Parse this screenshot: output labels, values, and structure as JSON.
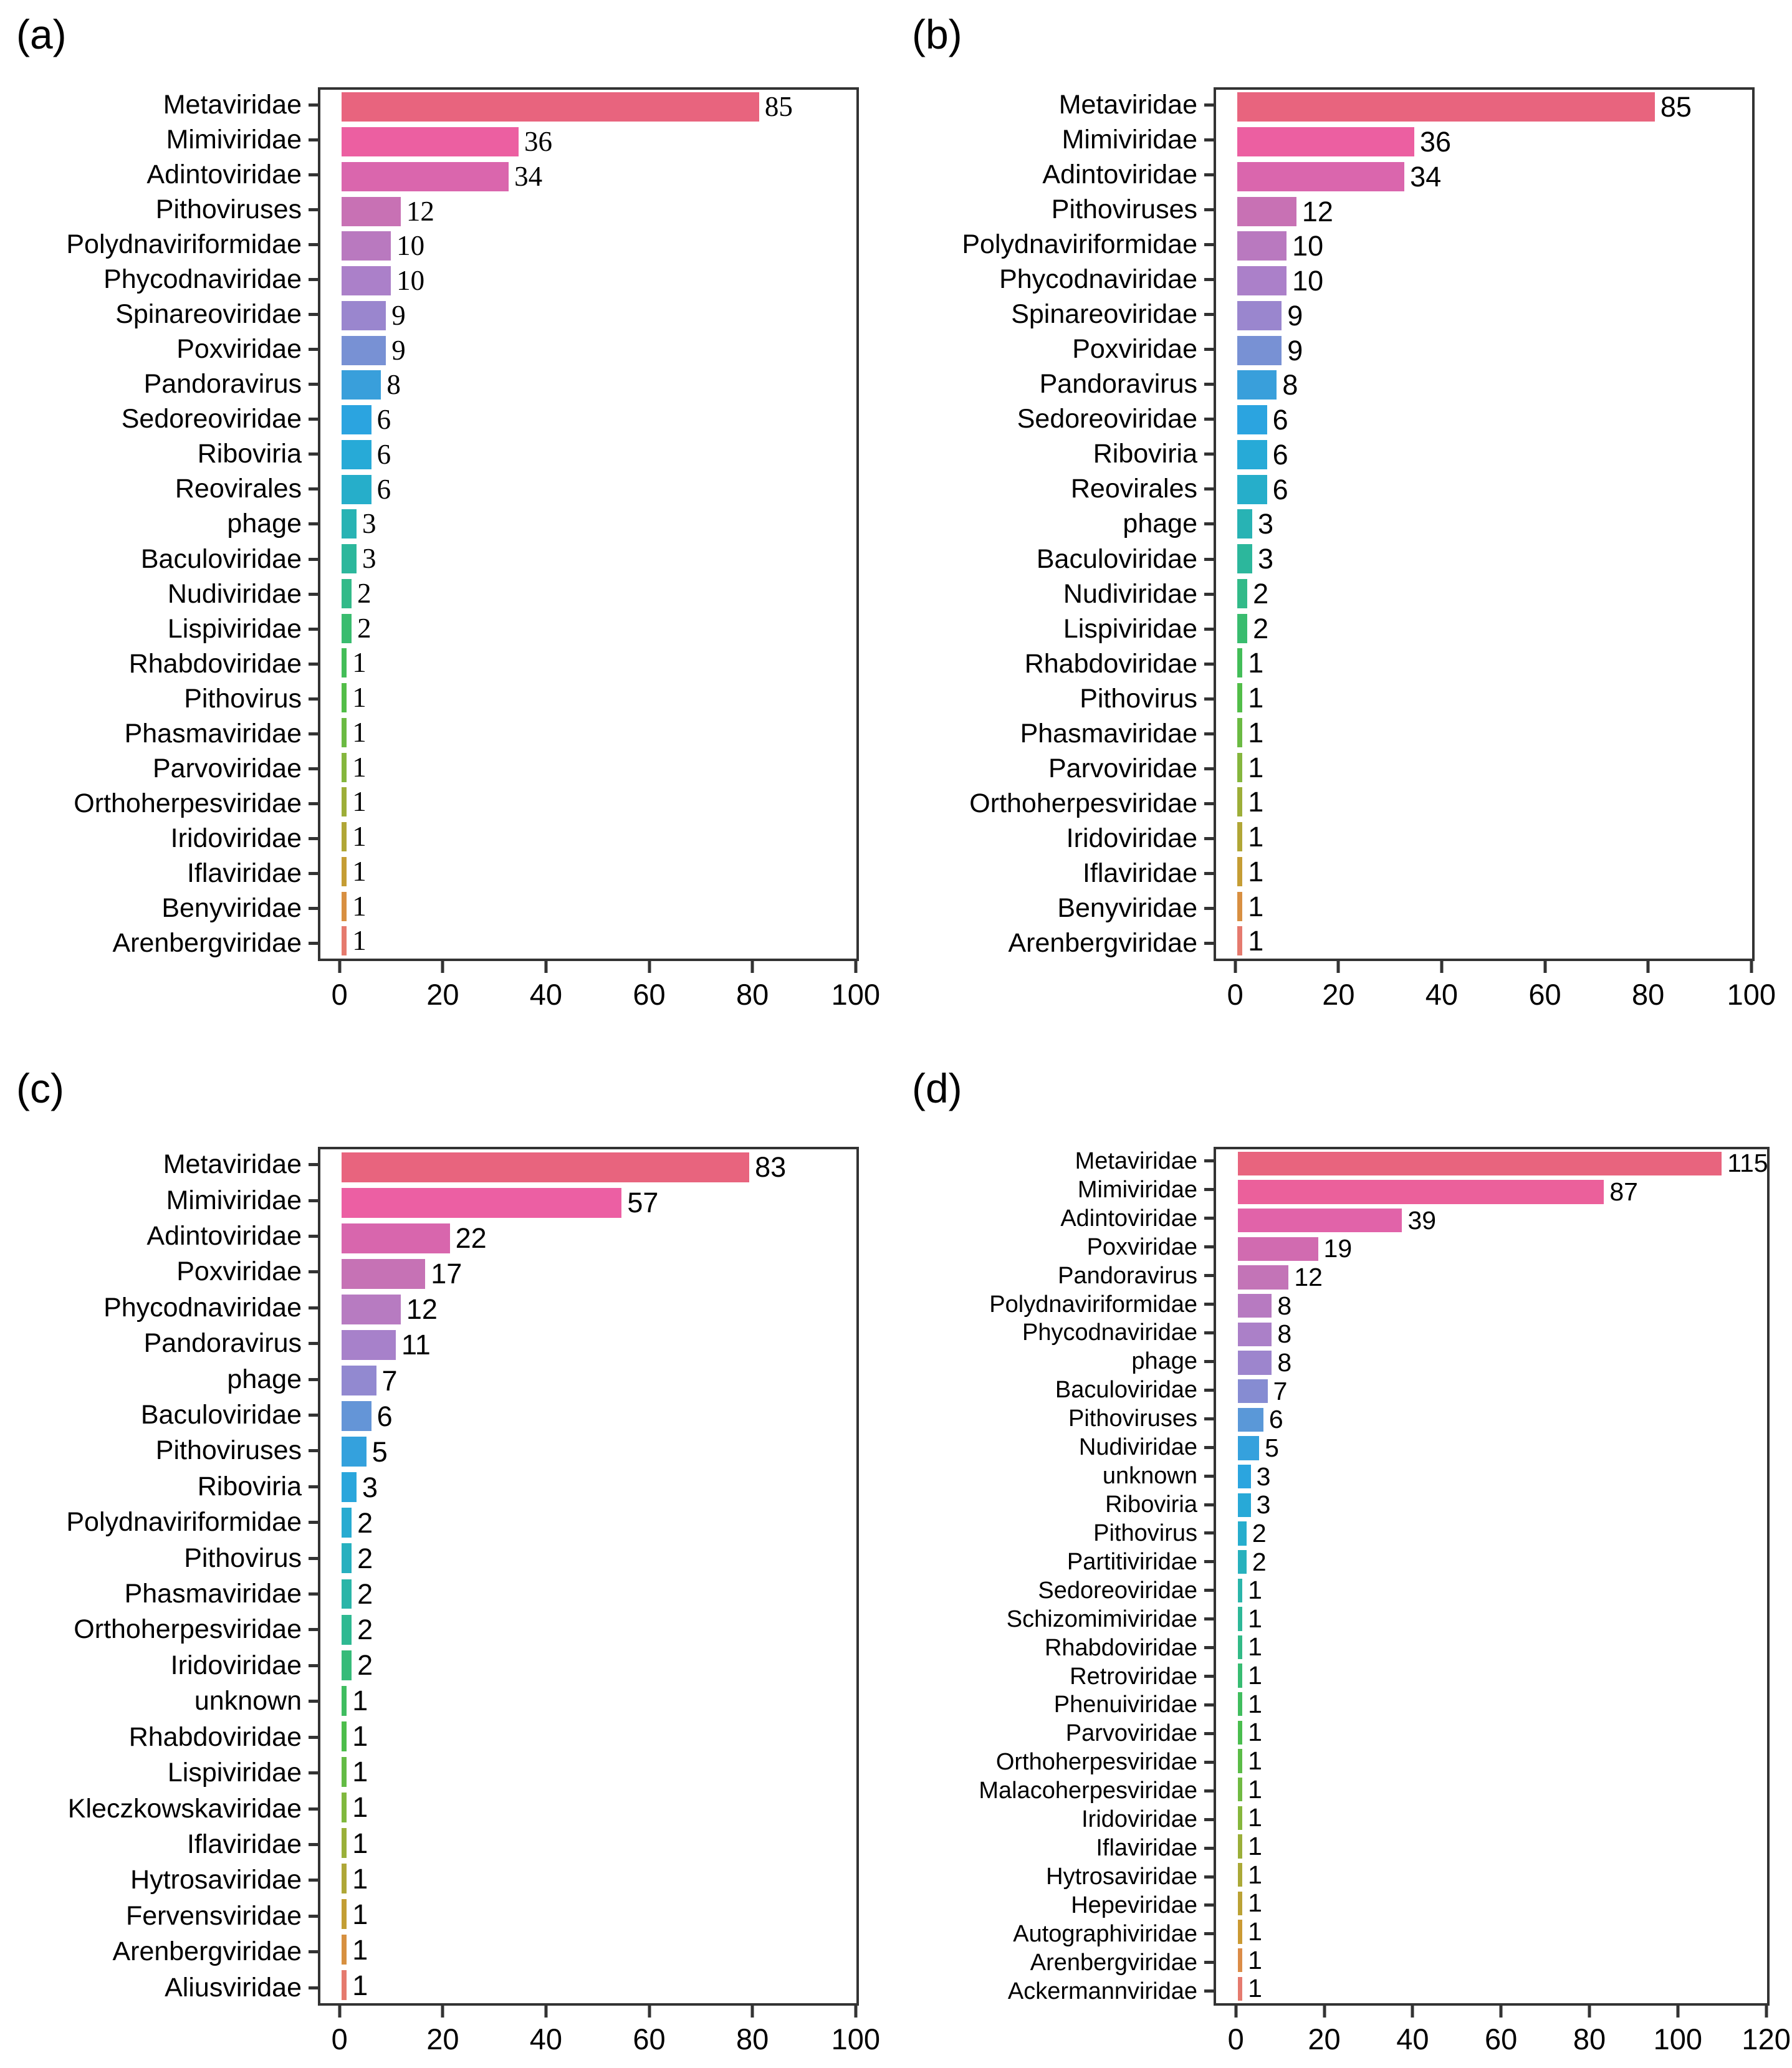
{
  "figure": {
    "background": "#ffffff"
  },
  "style": {
    "axis_color": "#333333",
    "text_color": "#000000",
    "palette_stops": [
      [
        0.0,
        "#e8647e"
      ],
      [
        0.045,
        "#ec5fa4"
      ],
      [
        0.09,
        "#d767ae"
      ],
      [
        0.13,
        "#c672b5"
      ],
      [
        0.17,
        "#b87ac0"
      ],
      [
        0.21,
        "#aa80c9"
      ],
      [
        0.25,
        "#9a86ce"
      ],
      [
        0.29,
        "#7b90d4"
      ],
      [
        0.33,
        "#3a9fdb"
      ],
      [
        0.375,
        "#2ba4e0"
      ],
      [
        0.42,
        "#27aad6"
      ],
      [
        0.46,
        "#26aec9"
      ],
      [
        0.5,
        "#28b3b4"
      ],
      [
        0.54,
        "#2cb79d"
      ],
      [
        0.58,
        "#31ba8b"
      ],
      [
        0.62,
        "#38bc72"
      ],
      [
        0.66,
        "#41bd5b"
      ],
      [
        0.7,
        "#4dbd49"
      ],
      [
        0.74,
        "#64bb45"
      ],
      [
        0.78,
        "#7eb83e"
      ],
      [
        0.82,
        "#97b139"
      ],
      [
        0.86,
        "#aaa937"
      ],
      [
        0.9,
        "#bda135"
      ],
      [
        0.94,
        "#cf9833"
      ],
      [
        0.97,
        "#dd8a4a"
      ],
      [
        1.0,
        "#e57a6e"
      ]
    ]
  },
  "chart_data": [
    {
      "type": "bar",
      "orientation": "horizontal",
      "panel_label": "(a)",
      "value_label_style": "serif",
      "xlim": [
        0,
        100
      ],
      "x_ticks": [
        0,
        20,
        40,
        60,
        80,
        100
      ],
      "grid": false,
      "categories": [
        "Metaviridae",
        "Mimiviridae",
        "Adintoviridae",
        "Pithoviruses",
        "Polydnaviriformidae",
        "Phycodnaviridae",
        "Spinareoviridae",
        "Poxviridae",
        "Pandoravirus",
        "Sedoreoviridae",
        "Riboviria",
        "Reovirales",
        "phage",
        "Baculoviridae",
        "Nudiviridae",
        "Lispiviridae",
        "Rhabdoviridae",
        "Pithovirus",
        "Phasmaviridae",
        "Parvoviridae",
        "Orthoherpesviridae",
        "Iridoviridae",
        "Iflaviridae",
        "Benyviridae",
        "Arenbergviridae"
      ],
      "values": [
        85,
        36,
        34,
        12,
        10,
        10,
        9,
        9,
        8,
        6,
        6,
        6,
        3,
        3,
        2,
        2,
        1,
        1,
        1,
        1,
        1,
        1,
        1,
        1,
        1
      ]
    },
    {
      "type": "bar",
      "orientation": "horizontal",
      "panel_label": "(b)",
      "value_label_style": "sans",
      "xlim": [
        0,
        100
      ],
      "x_ticks": [
        0,
        20,
        40,
        60,
        80,
        100
      ],
      "grid": false,
      "categories": [
        "Metaviridae",
        "Mimiviridae",
        "Adintoviridae",
        "Pithoviruses",
        "Polydnaviriformidae",
        "Phycodnaviridae",
        "Spinareoviridae",
        "Poxviridae",
        "Pandoravirus",
        "Sedoreoviridae",
        "Riboviria",
        "Reovirales",
        "phage",
        "Baculoviridae",
        "Nudiviridae",
        "Lispiviridae",
        "Rhabdoviridae",
        "Pithovirus",
        "Phasmaviridae",
        "Parvoviridae",
        "Orthoherpesviridae",
        "Iridoviridae",
        "Iflaviridae",
        "Benyviridae",
        "Arenbergviridae"
      ],
      "values": [
        85,
        36,
        34,
        12,
        10,
        10,
        9,
        9,
        8,
        6,
        6,
        6,
        3,
        3,
        2,
        2,
        1,
        1,
        1,
        1,
        1,
        1,
        1,
        1,
        1
      ]
    },
    {
      "type": "bar",
      "orientation": "horizontal",
      "panel_label": "(c)",
      "value_label_style": "sans",
      "xlim": [
        0,
        100
      ],
      "x_ticks": [
        0,
        20,
        40,
        60,
        80,
        100
      ],
      "grid": false,
      "categories": [
        "Metaviridae",
        "Mimiviridae",
        "Adintoviridae",
        "Poxviridae",
        "Phycodnaviridae",
        "Pandoravirus",
        "phage",
        "Baculoviridae",
        "Pithoviruses",
        "Riboviria",
        "Polydnaviriformidae",
        "Pithovirus",
        "Phasmaviridae",
        "Orthoherpesviridae",
        "Iridoviridae",
        "unknown",
        "Rhabdoviridae",
        "Lispiviridae",
        "Kleczkowskaviridae",
        "Iflaviridae",
        "Hytrosaviridae",
        "Fervensviridae",
        "Arenbergviridae",
        "Aliusviridae"
      ],
      "values": [
        83,
        57,
        22,
        17,
        12,
        11,
        7,
        6,
        5,
        3,
        2,
        2,
        2,
        2,
        2,
        1,
        1,
        1,
        1,
        1,
        1,
        1,
        1,
        1
      ]
    },
    {
      "type": "bar",
      "orientation": "horizontal",
      "panel_label": "(d)",
      "value_label_style": "sans",
      "xlim": [
        0,
        120
      ],
      "x_ticks": [
        0,
        20,
        40,
        60,
        80,
        100,
        120
      ],
      "grid": false,
      "categories": [
        "Metaviridae",
        "Mimiviridae",
        "Adintoviridae",
        "Poxviridae",
        "Pandoravirus",
        "Polydnaviriformidae",
        "Phycodnaviridae",
        "phage",
        "Baculoviridae",
        "Pithoviruses",
        "Nudiviridae",
        "unknown",
        "Riboviria",
        "Pithovirus",
        "Partitiviridae",
        "Sedoreoviridae",
        "Schizomimiviridae",
        "Rhabdoviridae",
        "Retroviridae",
        "Phenuiviridae",
        "Parvoviridae",
        "Orthoherpesviridae",
        "Malacoherpesviridae",
        "Iridoviridae",
        "Iflaviridae",
        "Hytrosaviridae",
        "Hepeviridae",
        "Autographiviridae",
        "Arenbergviridae",
        "Ackermannviridae"
      ],
      "values": [
        115,
        87,
        39,
        19,
        12,
        8,
        8,
        8,
        7,
        6,
        5,
        3,
        3,
        2,
        2,
        1,
        1,
        1,
        1,
        1,
        1,
        1,
        1,
        1,
        1,
        1,
        1,
        1,
        1,
        1
      ]
    }
  ]
}
